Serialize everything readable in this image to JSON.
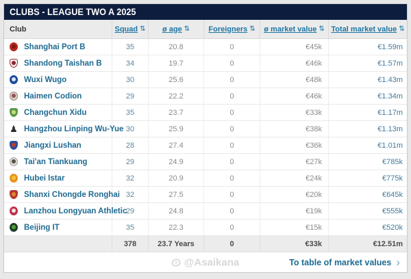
{
  "title": "CLUBS - LEAGUE TWO A 2025",
  "columns": {
    "club": "Club",
    "squad": "Squad",
    "age": "ø age",
    "foreigners": "Foreigners",
    "avg_market_value": "ø market value",
    "total_market_value": "Total market value",
    "sort_icon": "⇅"
  },
  "clubs": [
    {
      "name": "Shanghai Port B",
      "squad": "35",
      "age": "20.8",
      "foreigners": "0",
      "avg_mv": "€45k",
      "total_mv": "€1.59m",
      "badge": {
        "shape": "circle",
        "outer": "#b5271f",
        "inner": "#7e1a14"
      }
    },
    {
      "name": "Shandong Taishan B",
      "squad": "34",
      "age": "19.7",
      "foreigners": "0",
      "avg_mv": "€46k",
      "total_mv": "€1.57m",
      "badge": {
        "shape": "shield",
        "outer": "#f3ece4",
        "border": "#96303e",
        "inner": "#8c2232"
      }
    },
    {
      "name": "Wuxi Wugo",
      "squad": "30",
      "age": "25.6",
      "foreigners": "0",
      "avg_mv": "€48k",
      "total_mv": "€1.43m",
      "badge": {
        "shape": "circle",
        "outer": "#1b4aa0",
        "inner": "#dce7f5"
      }
    },
    {
      "name": "Haimen Codion",
      "squad": "29",
      "age": "22.2",
      "foreigners": "0",
      "avg_mv": "€46k",
      "total_mv": "€1.34m",
      "badge": {
        "shape": "oval",
        "outer": "#d8cfc4",
        "border": "#9a8c7c",
        "inner": "#96505a"
      }
    },
    {
      "name": "Changchun Xidu",
      "squad": "35",
      "age": "23.7",
      "foreigners": "0",
      "avg_mv": "€33k",
      "total_mv": "€1.17m",
      "badge": {
        "shape": "shield",
        "outer": "#5d9948",
        "inner": "#c4e07e"
      }
    },
    {
      "name": "Hangzhou Linping Wu-Yue",
      "squad": "30",
      "age": "25.9",
      "foreigners": "0",
      "avg_mv": "€38k",
      "total_mv": "€1.13m",
      "badge": {
        "shape": "glyph",
        "glyph": "♟",
        "outer": "#2e2e2e"
      }
    },
    {
      "name": "Jiangxi Lushan",
      "squad": "28",
      "age": "27.4",
      "foreigners": "0",
      "avg_mv": "€36k",
      "total_mv": "€1.01m",
      "badge": {
        "shape": "shield",
        "outer": "#2e4d9b",
        "inner": "#c23b2e"
      }
    },
    {
      "name": "Tai'an Tiankuang",
      "squad": "29",
      "age": "24.9",
      "foreigners": "0",
      "avg_mv": "€27k",
      "total_mv": "€785k",
      "badge": {
        "shape": "circle",
        "outer": "#dcd9d2",
        "border": "#a8a49c",
        "inner": "#55524a"
      }
    },
    {
      "name": "Hubei Istar",
      "squad": "32",
      "age": "20.9",
      "foreigners": "0",
      "avg_mv": "€24k",
      "total_mv": "€775k",
      "badge": {
        "shape": "circle",
        "outer": "#e8941f",
        "inner": "#f6c03c"
      }
    },
    {
      "name": "Shanxi Chongde Ronghai",
      "squad": "32",
      "age": "27.5",
      "foreigners": "0",
      "avg_mv": "€20k",
      "total_mv": "€645k",
      "badge": {
        "shape": "shield",
        "outer": "#b4382e",
        "inner": "#e2862c"
      }
    },
    {
      "name": "Lanzhou Longyuan Athletic",
      "squad": "29",
      "age": "24.8",
      "foreigners": "0",
      "avg_mv": "€19k",
      "total_mv": "€555k",
      "badge": {
        "shape": "circle",
        "outer": "#c13049",
        "inner": "#f2e6e9"
      }
    },
    {
      "name": "Beijing IT",
      "squad": "35",
      "age": "22.3",
      "foreigners": "0",
      "avg_mv": "€15k",
      "total_mv": "€520k",
      "badge": {
        "shape": "circle",
        "outer": "#234024",
        "inner": "#4da03b"
      }
    }
  ],
  "totals": {
    "squad": "378",
    "age": "23.7 Years",
    "foreigners": "0",
    "avg_mv": "€33k",
    "total_mv": "€12.51m"
  },
  "footer": {
    "link_label": "To table of market values",
    "chevron": "›"
  },
  "watermark": "@Asaikana",
  "colors": {
    "title_bar_bg": "#0d1d3d",
    "header_link": "#1d75a3",
    "club_link": "#1f6a91",
    "total_value_link": "#41799c",
    "page_bg": "#e8e8e8"
  }
}
